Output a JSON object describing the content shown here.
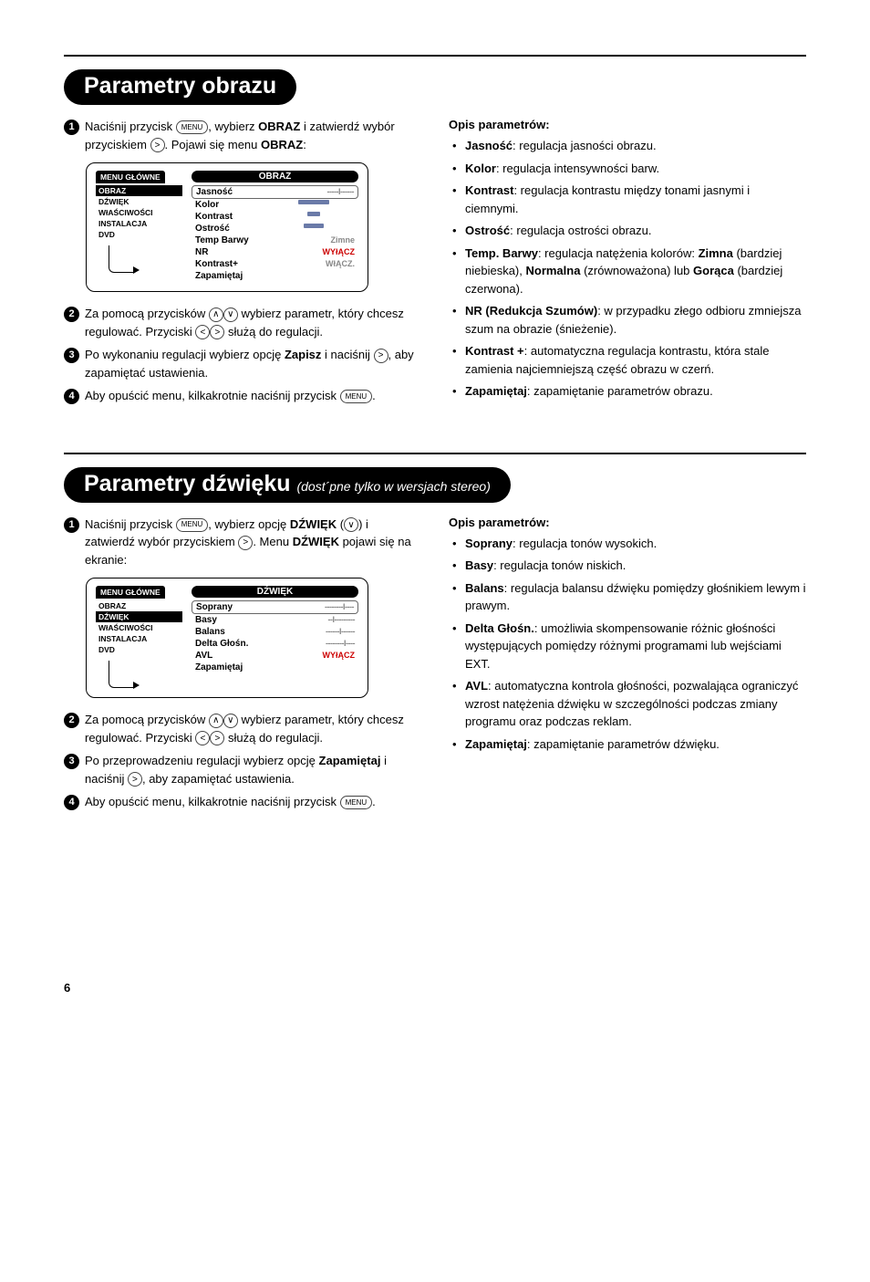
{
  "section1": {
    "title": "Parametry obrazu",
    "steps": [
      {
        "n": "1",
        "text_pre": "Naciśnij przycisk ",
        "key1": "MENU",
        "text_mid": ", wybierz ",
        "bold1": "OBRAZ",
        "text_mid2": " i zatwierdź wybór przyciskiem ",
        "key2": ">",
        "text_mid3": ". Pojawi się menu ",
        "bold2": "OBRAZ",
        "text_end": ":"
      },
      {
        "n": "2",
        "text_pre": "Za pomocą przycisków ",
        "key1": "∧",
        "key2": "∨",
        "text_mid": " wybierz parametr, który chcesz regulować. Przyciski ",
        "key3": "<",
        "key4": ">",
        "text_end": " służą do regulacji."
      },
      {
        "n": "3",
        "text_pre": "Po wykonaniu regulacji wybierz opcję ",
        "bold1": "Zapisz",
        "text_mid": " i naciśnij ",
        "key1": ">",
        "text_end": ", aby zapamiętać ustawienia."
      },
      {
        "n": "4",
        "text_pre": "Aby opuścić menu, kilkakrotnie naciśnij przycisk ",
        "key1": "MENU",
        "text_end": "."
      }
    ],
    "menu": {
      "tab": "MENU GŁÓWNE",
      "left": [
        "OBRAZ",
        "DŹWIĘK",
        "WłAŚCIWOŚCI",
        "INSTALACJA",
        "DVD"
      ],
      "active_index": 0,
      "title": "OBRAZ",
      "rows": [
        {
          "label": "Jasność",
          "type": "ticks",
          "val": "-----I------",
          "sel": true
        },
        {
          "label": "Kolor",
          "type": "slider",
          "cls": "s2"
        },
        {
          "label": "Kontrast",
          "type": "slider",
          "cls": "s3"
        },
        {
          "label": "Ostrość",
          "type": "slider",
          "cls": "s4"
        },
        {
          "label": "Temp Barwy",
          "type": "text",
          "val": "Zimne"
        },
        {
          "label": "NR",
          "type": "text",
          "val": "WYłĄCZ",
          "red": true
        },
        {
          "label": "Kontrast+",
          "type": "text",
          "val": "WłĄCZ."
        },
        {
          "label": "Zapamiętaj",
          "type": "none"
        }
      ]
    },
    "desc_title": "Opis parametrów:",
    "desc": [
      {
        "b": "Jasność",
        "t": ": regulacja jasności obrazu."
      },
      {
        "b": "Kolor",
        "t": ": regulacja intensywności barw."
      },
      {
        "b": "Kontrast",
        "t": ": regulacja kontrastu między tonami jasnymi i ciemnymi."
      },
      {
        "b": "Ostrość",
        "t": ": regulacja ostrości obrazu."
      },
      {
        "b": "Temp. Barwy",
        "t": ": regulacja natężenia kolorów: ",
        "extra": "Zimna (bardziej niebieska), Normalna (zrównoważona) lub Gorąca (bardziej czerwona).",
        "bold_in": [
          "Zimna",
          "Normalna",
          "Gorąca"
        ]
      },
      {
        "b": "NR (Redukcja Szumów)",
        "t": ": w przypadku złego odbioru zmniejsza szum na obrazie (śnieżenie)."
      },
      {
        "b": "Kontrast +",
        "t": ": automatyczna regulacja kontrastu, która stale zamienia najciemniejszą część obrazu w czerń."
      },
      {
        "b": "Zapamiętaj",
        "t": ": zapamiętanie parametrów obrazu."
      }
    ]
  },
  "section2": {
    "title": "Parametry dźwięku",
    "subtitle": "(dost´pne tylko w wersjach stereo)",
    "steps": [
      {
        "n": "1",
        "text_pre": "Naciśnij przycisk ",
        "key1": "MENU",
        "text_mid": ", wybierz opcję ",
        "bold1": "DŹWIĘK",
        "text_mid2": " (",
        "key2": "∨",
        "text_mid3": ") i zatwierdź wybór przyciskiem ",
        "key3": ">",
        "text_mid4": ". Menu ",
        "bold2": "DŹWIĘK",
        "text_end": " pojawi się na ekranie:"
      },
      {
        "n": "2",
        "text_pre": "Za pomocą przycisków ",
        "key1": "∧",
        "key2": "∨",
        "text_mid": " wybierz parametr, który chcesz regulować. Przyciski ",
        "key3": "<",
        "key4": ">",
        "text_end": " służą do regulacji."
      },
      {
        "n": "3",
        "text_pre": "Po przeprowadzeniu regulacji wybierz opcję ",
        "bold1": "Zapamiętaj",
        "text_mid": " i naciśnij ",
        "key1": ">",
        "text_end": ", aby zapamiętać ustawienia."
      },
      {
        "n": "4",
        "text_pre": "Aby opuścić menu, kilkakrotnie naciśnij przycisk ",
        "key1": "MENU",
        "text_end": "."
      }
    ],
    "menu": {
      "tab": "MENU GŁÓWNE",
      "left": [
        "OBRAZ",
        "DŹWIĘK",
        "WłAŚCIWOŚCI",
        "INSTALACJA",
        "DVD"
      ],
      "active_index": 1,
      "title": "DŹWIĘK",
      "rows": [
        {
          "label": "Soprany",
          "type": "ticks",
          "val": "--------I----",
          "sel": true
        },
        {
          "label": "Basy",
          "type": "ticks",
          "val": "--I---------"
        },
        {
          "label": "Balans",
          "type": "ticks",
          "val": "------I------"
        },
        {
          "label": "Delta Głośn.",
          "type": "ticks",
          "val": "--------I----"
        },
        {
          "label": "AVL",
          "type": "text",
          "val": "WYłĄCZ",
          "red": true
        },
        {
          "label": "Zapamiętaj",
          "type": "none"
        }
      ]
    },
    "desc_title": "Opis parametrów:",
    "desc": [
      {
        "b": "Soprany",
        "t": ": regulacja tonów wysokich."
      },
      {
        "b": "Basy",
        "t": ": regulacja tonów niskich."
      },
      {
        "b": "Balans",
        "t": ": regulacja balansu dźwięku pomiędzy głośnikiem lewym i prawym."
      },
      {
        "b": "Delta Głośn.",
        "t": ": umożliwia skompensowanie różnic głośności występujących pomiędzy różnymi programami lub wejściami EXT."
      },
      {
        "b": "AVL",
        "t": ": automatyczna kontrola głośności, pozwalająca ograniczyć wzrost natężenia dźwięku w szczególności podczas zmiany programu oraz podczas reklam."
      },
      {
        "b": "Zapamiętaj",
        "t": ": zapamiętanie parametrów dźwięku."
      }
    ]
  },
  "page_number": "6"
}
